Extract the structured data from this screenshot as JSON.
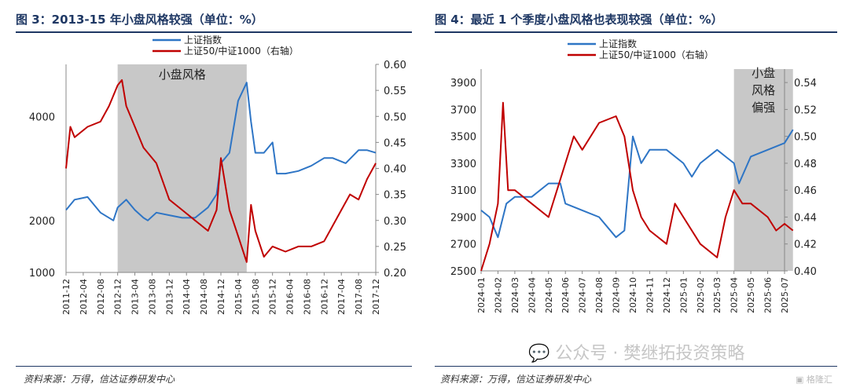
{
  "watermark": {
    "text": "公众号 · 樊继拓投资策略",
    "logo_text": "格隆汇"
  },
  "chart_data": [
    {
      "type": "line",
      "title": "图 3：2013-15 年小盘风格较强（单位：%）",
      "source": "资料来源：万得，信达证券研发中心",
      "x_ticks": [
        "2011-12",
        "2012-04",
        "2012-08",
        "2012-12",
        "2013-04",
        "2013-08",
        "2013-12",
        "2014-04",
        "2014-08",
        "2014-12",
        "2015-04",
        "2015-08",
        "2015-12",
        "2016-04",
        "2016-08",
        "2016-12",
        "2017-04",
        "2017-08",
        "2017-12"
      ],
      "y_left_ticks": [
        1000,
        2000,
        4000
      ],
      "y_left_lim": [
        1000,
        5000
      ],
      "y_right_ticks": [
        "0.60",
        "0.55",
        "0.50",
        "0.45",
        "0.40",
        "0.35",
        "0.30",
        "0.25",
        "0.20"
      ],
      "y_right_lim": [
        0.2,
        0.6
      ],
      "shaded_region": {
        "from": "2012-12",
        "to": "2015-06",
        "label": "小盘风格"
      },
      "legend_position": "top-center",
      "colors": {
        "left": "#2e75c5",
        "right": "#c00000",
        "shade": "#c8c8c8"
      },
      "series": [
        {
          "name": "上证指数",
          "axis": "left",
          "color": "#2e75c5",
          "x": [
            "2011-12",
            "2012-02",
            "2012-05",
            "2012-08",
            "2012-11",
            "2012-12",
            "2013-02",
            "2013-04",
            "2013-06",
            "2013-07",
            "2013-09",
            "2013-12",
            "2014-03",
            "2014-06",
            "2014-09",
            "2014-11",
            "2014-12",
            "2015-02",
            "2015-04",
            "2015-06",
            "2015-07",
            "2015-08",
            "2015-10",
            "2015-12",
            "2016-01",
            "2016-03",
            "2016-06",
            "2016-09",
            "2016-12",
            "2017-02",
            "2017-05",
            "2017-08",
            "2017-10",
            "2017-12"
          ],
          "values": [
            2200,
            2400,
            2450,
            2150,
            2000,
            2250,
            2400,
            2200,
            2050,
            2000,
            2150,
            2100,
            2050,
            2050,
            2250,
            2500,
            3100,
            3300,
            4300,
            4650,
            3900,
            3300,
            3300,
            3500,
            2900,
            2900,
            2950,
            3050,
            3200,
            3200,
            3100,
            3350,
            3350,
            3300
          ]
        },
        {
          "name": "上证50/中证1000（右轴）",
          "axis": "right",
          "color": "#c00000",
          "x": [
            "2011-12",
            "2012-01",
            "2012-02",
            "2012-05",
            "2012-08",
            "2012-10",
            "2012-12",
            "2013-01",
            "2013-02",
            "2013-04",
            "2013-06",
            "2013-09",
            "2013-12",
            "2014-03",
            "2014-06",
            "2014-09",
            "2014-11",
            "2014-12",
            "2015-02",
            "2015-04",
            "2015-06",
            "2015-07",
            "2015-08",
            "2015-10",
            "2015-12",
            "2016-03",
            "2016-06",
            "2016-09",
            "2016-12",
            "2017-02",
            "2017-04",
            "2017-06",
            "2017-08",
            "2017-10",
            "2017-12"
          ],
          "values": [
            0.4,
            0.48,
            0.46,
            0.48,
            0.49,
            0.52,
            0.56,
            0.57,
            0.52,
            0.48,
            0.44,
            0.41,
            0.34,
            0.32,
            0.3,
            0.28,
            0.32,
            0.42,
            0.32,
            0.27,
            0.22,
            0.33,
            0.28,
            0.23,
            0.25,
            0.24,
            0.25,
            0.25,
            0.26,
            0.29,
            0.32,
            0.35,
            0.34,
            0.38,
            0.41
          ]
        }
      ]
    },
    {
      "type": "line",
      "title": "图 4：最近 1 个季度小盘风格也表现较强（单位：%）",
      "source": "资料来源：万得，信达证券研发中心",
      "x_ticks": [
        "2024-01",
        "2024-02",
        "2024-03",
        "2024-04",
        "2024-05",
        "2024-06",
        "2024-07",
        "2024-08",
        "2024-09",
        "2024-10",
        "2024-11",
        "2024-12",
        "2025-01",
        "2025-02",
        "2025-03",
        "2025-04",
        "2025-05",
        "2025-06",
        "2025-07"
      ],
      "y_left_ticks": [
        2500,
        2700,
        2900,
        3100,
        3300,
        3500,
        3700,
        3900
      ],
      "y_left_lim": [
        2500,
        4000
      ],
      "y_right_ticks": [
        "0.54",
        "0.52",
        "0.50",
        "0.48",
        "0.46",
        "0.44",
        "0.42",
        "0.40"
      ],
      "y_right_lim": [
        0.4,
        0.55
      ],
      "shaded_region": {
        "from": "2025-04",
        "to": "2025-07.5",
        "label": "小盘风格偏强"
      },
      "legend_position": "top-center",
      "colors": {
        "left": "#2e75c5",
        "right": "#c00000",
        "shade": "#c8c8c8"
      },
      "series": [
        {
          "name": "上证指数",
          "axis": "left",
          "color": "#2e75c5",
          "x": [
            "2024-01",
            "2024-01.5",
            "2024-02",
            "2024-02.5",
            "2024-03",
            "2024-04",
            "2024-05",
            "2024-05.7",
            "2024-06",
            "2024-07",
            "2024-08",
            "2024-09",
            "2024-09.5",
            "2024-10",
            "2024-10.5",
            "2024-11",
            "2024-12",
            "2025-01",
            "2025-01.5",
            "2025-02",
            "2025-03",
            "2025-03.5",
            "2025-04",
            "2025-04.3",
            "2025-05",
            "2025-06",
            "2025-07",
            "2025-07.5"
          ],
          "values": [
            2950,
            2900,
            2750,
            3000,
            3050,
            3050,
            3150,
            3150,
            3000,
            2950,
            2900,
            2750,
            2800,
            3500,
            3300,
            3400,
            3400,
            3300,
            3200,
            3300,
            3400,
            3350,
            3300,
            3150,
            3350,
            3400,
            3450,
            3550
          ]
        },
        {
          "name": "上证50/中证1000（右轴）",
          "axis": "right",
          "color": "#c00000",
          "x": [
            "2024-01",
            "2024-01.5",
            "2024-02",
            "2024-02.3",
            "2024-02.6",
            "2024-03",
            "2024-04",
            "2024-05",
            "2024-06",
            "2024-06.5",
            "2024-07",
            "2024-08",
            "2024-09",
            "2024-09.5",
            "2024-10",
            "2024-10.5",
            "2024-11",
            "2024-12",
            "2024-12.5",
            "2025-01",
            "2025-02",
            "2025-03",
            "2025-03.5",
            "2025-04",
            "2025-04.5",
            "2025-05",
            "2025-06",
            "2025-06.5",
            "2025-07",
            "2025-07.5"
          ],
          "values": [
            0.4,
            0.42,
            0.45,
            0.525,
            0.46,
            0.46,
            0.45,
            0.44,
            0.48,
            0.5,
            0.49,
            0.51,
            0.515,
            0.5,
            0.46,
            0.44,
            0.43,
            0.42,
            0.45,
            0.44,
            0.42,
            0.41,
            0.44,
            0.46,
            0.45,
            0.45,
            0.44,
            0.43,
            0.435,
            0.43
          ]
        }
      ]
    }
  ]
}
